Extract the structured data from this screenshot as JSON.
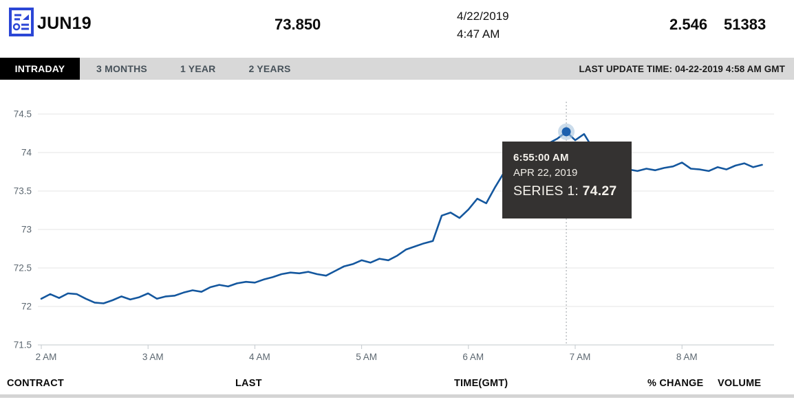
{
  "header": {
    "symbol": "JUN19",
    "last": "73.850",
    "date": "4/22/2019",
    "time": "4:47 AM",
    "pct_change": "2.546",
    "volume": "51383"
  },
  "tabs": {
    "items": [
      {
        "label": "INTRADAY",
        "active": true
      },
      {
        "label": "3 MONTHS",
        "active": false
      },
      {
        "label": "1 YEAR",
        "active": false
      },
      {
        "label": "2 YEARS",
        "active": false
      }
    ],
    "last_update": "LAST UPDATE TIME: 04-22-2019 4:58 AM GMT"
  },
  "tooltip": {
    "time": "6:55:00 AM",
    "date": "APR 22, 2019",
    "series_label": "SERIES 1:",
    "value": "74.27"
  },
  "footer": {
    "columns": [
      "CONTRACT",
      "LAST",
      "TIME(GMT)",
      "% CHANGE",
      "VOLUME"
    ]
  },
  "chart_data": {
    "type": "line",
    "title": "",
    "xlabel": "",
    "ylabel": "",
    "x_start_time": "2:00 AM",
    "interval_minutes": 5,
    "x_ticks": [
      "2 AM",
      "3 AM",
      "4 AM",
      "5 AM",
      "6 AM",
      "7 AM",
      "8 AM"
    ],
    "y_ticks": [
      "74.5",
      "74",
      "73.5",
      "73",
      "72.5",
      "72",
      "71.5"
    ],
    "ylim": [
      71.5,
      74.5
    ],
    "grid": true,
    "series": [
      {
        "name": "SERIES 1",
        "values": [
          72.1,
          72.16,
          72.11,
          72.17,
          72.16,
          72.1,
          72.05,
          72.04,
          72.08,
          72.13,
          72.09,
          72.12,
          72.17,
          72.1,
          72.13,
          72.14,
          72.18,
          72.21,
          72.19,
          72.25,
          72.28,
          72.26,
          72.3,
          72.32,
          72.31,
          72.35,
          72.38,
          72.42,
          72.44,
          72.43,
          72.45,
          72.42,
          72.4,
          72.46,
          72.52,
          72.55,
          72.6,
          72.57,
          72.62,
          72.6,
          72.66,
          72.74,
          72.78,
          72.82,
          72.85,
          73.18,
          73.22,
          73.15,
          73.26,
          73.4,
          73.34,
          73.55,
          73.74,
          73.85,
          73.92,
          74.0,
          74.08,
          74.12,
          74.18,
          74.27,
          74.16,
          74.24,
          74.05,
          73.92,
          73.85,
          73.8,
          73.78,
          73.76,
          73.79,
          73.77,
          73.8,
          73.82,
          73.87,
          73.79,
          73.78,
          73.76,
          73.81,
          73.78,
          73.83,
          73.86,
          73.81,
          73.84
        ]
      }
    ],
    "highlight": {
      "index": 59,
      "time": "6:55:00 AM",
      "date": "APR 22, 2019",
      "value": 74.27
    },
    "colors": {
      "line": "#14579e",
      "marker": "#1b5fae",
      "marker_halo": "#a9c4dd",
      "grid": "#e4e4e4",
      "axis": "#c3c9ce",
      "tick_text": "#5c6770",
      "crosshair": "#9aa0a6",
      "tooltip_bg": "#343231",
      "accent_icon": "#2b46d6",
      "tab_bg": "#d8d8d8",
      "tab_active_bg": "#000000"
    }
  }
}
